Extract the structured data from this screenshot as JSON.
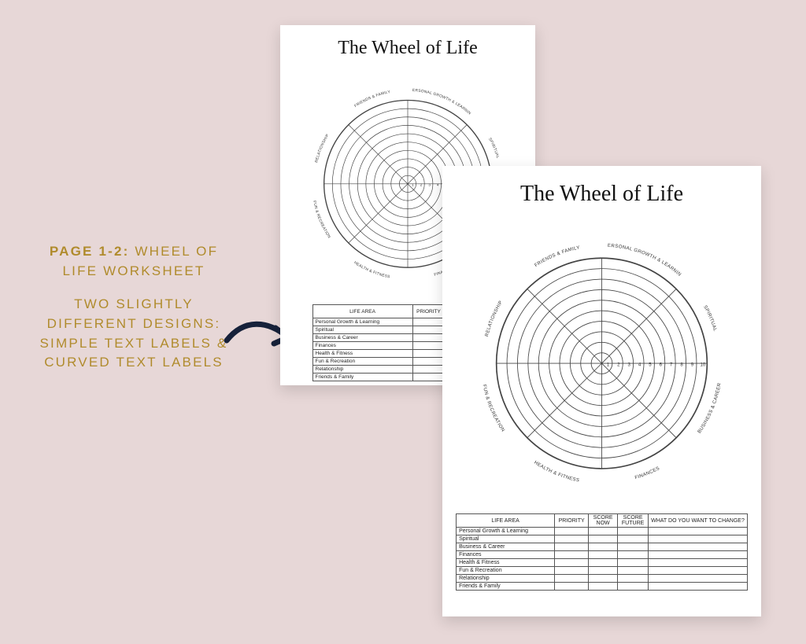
{
  "background_color": "#e7d7d7",
  "accent_color": "#b08b2c",
  "arrow_color": "#16213a",
  "caption": {
    "line1_bold": "PAGE 1-2:",
    "line1_rest": " WHEEL OF LIFE WORKSHEET",
    "para2": "TWO SLIGHTLY DIFFERENT DESIGNS: SIMPLE TEXT LABELS & CURVED TEXT LABELS"
  },
  "worksheet": {
    "title": "The Wheel of Life",
    "rings": 10,
    "ring_numbers": [
      "1",
      "2",
      "3",
      "4",
      "5",
      "6",
      "7",
      "8",
      "9",
      "10"
    ],
    "sectors": 8,
    "sector_labels": [
      "PERSONAL GROWTH & LEARNING",
      "SPIRITUAL",
      "BUSINESS & CAREER",
      "FINANCES",
      "HEALTH & FITNESS",
      "FUN & RECREATION",
      "RELATIONSHIP",
      "FRIENDS & FAMILY"
    ],
    "sector_labels_stacked": [
      [
        "PERSONAL GROWTH",
        "& LEARNING"
      ],
      [
        "SPIRITUAL"
      ],
      [
        "BUSINESS",
        "& CAREER"
      ],
      [
        "FINANCES"
      ],
      [
        "HEALTH",
        "& FITNESS"
      ],
      [
        "FUN &",
        "RECREATION"
      ],
      [
        "RELATIONSHIP"
      ],
      [
        "FRIENDS",
        "& FAMILY"
      ]
    ],
    "line_color": "#444444",
    "text_color": "#333333"
  },
  "table": {
    "headers": [
      "LIFE AREA",
      "PRIORITY",
      "SCORE NOW",
      "SCORE FUTURE",
      "WHAT DO YOU WANT TO CHANGE?"
    ],
    "rows": [
      "Personal Growth & Learning",
      "Spiritual",
      "Business & Career",
      "Finances",
      "Health & Fitness",
      "Fun & Recreation",
      "Relationship",
      "Friends & Family"
    ],
    "border_color": "#555555",
    "font": "Arial"
  },
  "pageA": {
    "table_cols_visible": 4,
    "font_scale": 6.5,
    "label_font": 5
  },
  "pageB": {
    "table_cols_visible": 5,
    "font_scale": 6.0,
    "label_font": 5
  }
}
